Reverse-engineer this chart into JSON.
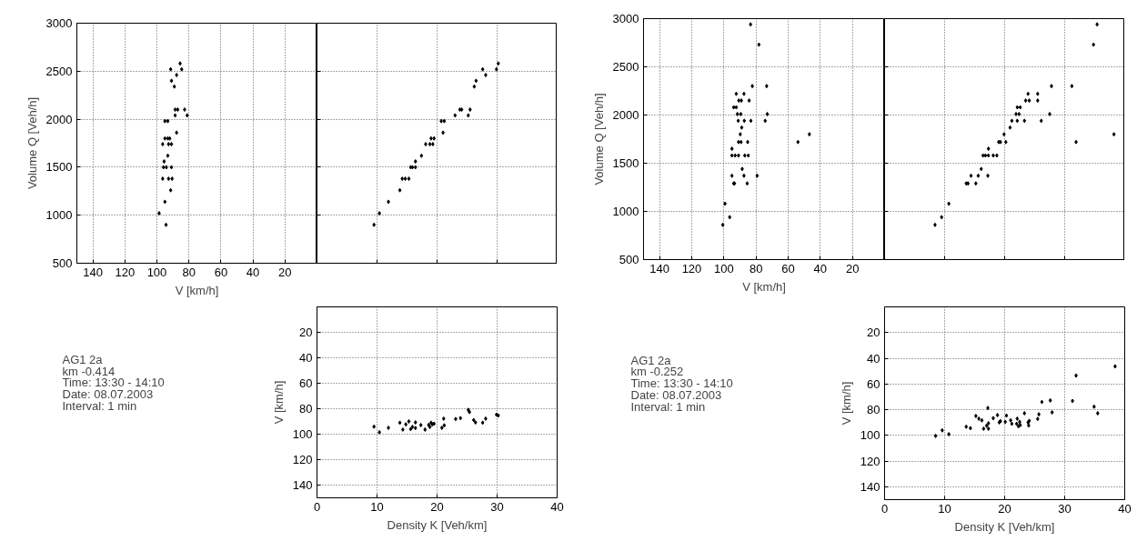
{
  "chart_data": [
    {
      "type": "scatter",
      "xlabel": "V [km/h]",
      "ylabel": "Volume Q [Veh/h]",
      "xlim": [
        150,
        0
      ],
      "xticks": [
        140,
        120,
        100,
        80,
        60,
        40,
        20
      ],
      "ylim": [
        500,
        3000
      ],
      "yticks": [
        500,
        1000,
        1500,
        2000,
        2500,
        3000
      ],
      "grid": true,
      "marker": "diamond",
      "color": "#000000",
      "x": [
        98.6,
        94.3,
        95.0,
        91.4,
        96.4,
        92.7,
        90.5,
        95.9,
        94.1,
        90.9,
        95.5,
        93.2,
        96.4,
        92.7,
        90.9,
        95.0,
        93.2,
        92.0,
        95.0,
        93.2,
        87.7,
        88.6,
        88.6,
        87.0,
        82.7,
        81.1,
        89.1,
        90.9,
        87.7,
        91.4,
        84.5,
        85.5
      ],
      "values": [
        1020,
        900,
        1140,
        1260,
        1380,
        1380,
        1380,
        1500,
        1500,
        1500,
        1560,
        1620,
        1740,
        1740,
        1740,
        1800,
        1800,
        1800,
        1980,
        1980,
        1860,
        2040,
        2100,
        2100,
        2100,
        2040,
        2340,
        2400,
        2460,
        2520,
        2520,
        2580
      ]
    },
    {
      "type": "scatter",
      "xlim": [
        0,
        40
      ],
      "xticks": [
        0,
        10,
        20,
        30,
        40
      ],
      "ylim": [
        500,
        3000
      ],
      "yticks": [
        500,
        1000,
        1500,
        2000,
        2500,
        3000
      ],
      "grid": true,
      "marker": "diamond",
      "color": "#000000",
      "tick_labels": false,
      "x": [
        9.5,
        10.4,
        11.9,
        13.8,
        14.2,
        14.7,
        15.3,
        15.6,
        15.9,
        16.4,
        16.4,
        17.4,
        18.1,
        18.8,
        19.3,
        19.0,
        19.5,
        20.7,
        21.2,
        21.0,
        23.0,
        23.8,
        24.1,
        25.2,
        25.5,
        26.2,
        26.5,
        27.6,
        28.1,
        29.9,
        30.2
      ],
      "values": [
        900,
        1020,
        1140,
        1260,
        1380,
        1380,
        1380,
        1500,
        1500,
        1500,
        1560,
        1620,
        1740,
        1740,
        1740,
        1800,
        1800,
        1980,
        1980,
        1860,
        2040,
        2100,
        2100,
        2040,
        2100,
        2340,
        2400,
        2520,
        2460,
        2520,
        2580
      ]
    },
    {
      "type": "other",
      "annotations": [
        "AG1 2a",
        "km -0.414",
        "Time: 13:30 - 14:10",
        "Date: 08.07.2003",
        "Interval: 1 min"
      ]
    },
    {
      "type": "scatter",
      "xlabel": "Density K [Veh/km]",
      "ylabel": "V [km/h]",
      "xlim": [
        0,
        40
      ],
      "xticks": [
        0,
        10,
        20,
        30,
        40
      ],
      "ylim": [
        150,
        0
      ],
      "yticks": [
        20,
        40,
        60,
        80,
        100,
        120,
        140
      ],
      "grid": true,
      "marker": "diamond",
      "color": "#000000",
      "x": [
        9.5,
        10.4,
        11.9,
        13.8,
        14.3,
        14.8,
        15.3,
        15.6,
        15.9,
        16.4,
        16.4,
        17.3,
        18.0,
        18.6,
        18.8,
        19.0,
        19.2,
        19.5,
        20.8,
        21.1,
        21.2,
        23.1,
        23.9,
        25.2,
        25.4,
        26.1,
        26.4,
        27.6,
        28.1,
        29.9,
        30.2
      ],
      "values": [
        94.1,
        98.5,
        95.0,
        91.0,
        96.4,
        92.3,
        90.0,
        96.0,
        94.3,
        95.2,
        90.8,
        92.9,
        96.4,
        92.7,
        94.3,
        91.0,
        92.3,
        91.8,
        95.0,
        87.8,
        93.1,
        88.1,
        87.4,
        80.9,
        82.6,
        88.9,
        90.8,
        91.0,
        87.8,
        84.7,
        85.3
      ]
    },
    {
      "type": "scatter",
      "xlabel": "V [km/h]",
      "ylabel": "Volume Q [Veh/h]",
      "xlim": [
        150,
        0
      ],
      "xticks": [
        140,
        120,
        100,
        80,
        60,
        40,
        20
      ],
      "ylim": [
        500,
        3000
      ],
      "yticks": [
        500,
        1000,
        1500,
        2000,
        2500,
        3000
      ],
      "grid": true,
      "marker": "diamond",
      "color": "#000000",
      "x": [
        100.7,
        96.4,
        99.3,
        95.0,
        93.9,
        95.0,
        95.0,
        93.0,
        90.9,
        93.4,
        88.6,
        87.5,
        85.5,
        87.0,
        84.8,
        90.9,
        89.3,
        85.2,
        89.8,
        88.9,
        91.1,
        87.3,
        83.2,
        91.6,
        89.5,
        93.9,
        92.3,
        90.7,
        89.1,
        92.3,
        87.5,
        84.3,
        82.3,
        83.4,
        78.2,
        79.3,
        73.4,
        74.3,
        73.0,
        53.9,
        46.8
      ],
      "values": [
        860,
        940,
        1080,
        1370,
        1290,
        1650,
        1580,
        1580,
        1580,
        1290,
        1440,
        1370,
        1290,
        1580,
        1580,
        1720,
        1720,
        1720,
        1800,
        1870,
        1940,
        1940,
        1940,
        2010,
        2010,
        2080,
        2080,
        2150,
        2150,
        2220,
        2220,
        2150,
        2300,
        2940,
        2730,
        1370,
        2300,
        1940,
        2010,
        1720,
        1800
      ]
    },
    {
      "type": "scatter",
      "xlim": [
        0,
        40
      ],
      "xticks": [
        0,
        10,
        20,
        30,
        40
      ],
      "ylim": [
        500,
        3000
      ],
      "yticks": [
        500,
        1000,
        1500,
        2000,
        2500,
        3000
      ],
      "grid": true,
      "marker": "diamond",
      "color": "#000000",
      "tick_labels": false,
      "x": [
        8.4,
        9.5,
        10.7,
        13.6,
        13.9,
        14.4,
        15.2,
        15.6,
        16.1,
        16.4,
        16.8,
        17.3,
        17.3,
        17.2,
        18.1,
        18.7,
        19.0,
        19.3,
        20.2,
        19.9,
        20.9,
        21.2,
        22.1,
        23.3,
        21.9,
        22.4,
        22.1,
        22.6,
        23.5,
        24.1,
        23.9,
        25.5,
        25.5,
        26.1,
        27.5,
        27.8,
        31.2,
        31.9,
        34.8,
        35.4,
        38.2
      ],
      "values": [
        860,
        940,
        1080,
        1290,
        1290,
        1370,
        1290,
        1370,
        1440,
        1580,
        1580,
        1580,
        1650,
        1370,
        1580,
        1580,
        1720,
        1720,
        1720,
        1800,
        1870,
        1940,
        1940,
        1940,
        2010,
        2010,
        2080,
        2080,
        2150,
        2150,
        2220,
        2220,
        2150,
        1940,
        2010,
        2300,
        2300,
        1720,
        2730,
        2940,
        1800
      ]
    },
    {
      "type": "other",
      "annotations": [
        "AG1 2a",
        "km -0.252",
        "Time: 13:30 - 14:10",
        "Date: 08.07.2003",
        "Interval: 1 min"
      ]
    },
    {
      "type": "scatter",
      "xlabel": "Density K [Veh/km]",
      "ylabel": "V [km/h]",
      "xlim": [
        0,
        40
      ],
      "xticks": [
        0,
        10,
        20,
        30,
        40
      ],
      "ylim": [
        150,
        0
      ],
      "yticks": [
        20,
        40,
        60,
        80,
        100,
        120,
        140
      ],
      "grid": true,
      "marker": "diamond",
      "color": "#000000",
      "x": [
        8.5,
        9.6,
        10.7,
        13.6,
        14.3,
        15.2,
        15.7,
        16.2,
        16.5,
        17.0,
        17.2,
        17.3,
        17.3,
        18.1,
        18.8,
        19.1,
        19.3,
        20.1,
        20.3,
        21.0,
        21.2,
        22.0,
        22.1,
        22.3,
        22.5,
        22.6,
        23.3,
        23.9,
        24.0,
        24.1,
        25.5,
        25.7,
        26.2,
        27.6,
        27.9,
        31.3,
        31.9,
        34.9,
        35.5,
        38.4
      ],
      "values": [
        100.4,
        96.1,
        99.1,
        93.3,
        94.4,
        84.9,
        87.0,
        88.3,
        94.8,
        92.5,
        78.7,
        90.6,
        94.8,
        86.6,
        84.2,
        89.9,
        88.9,
        89.5,
        84.6,
        88.3,
        91.0,
        91.0,
        87.0,
        92.9,
        89.5,
        91.9,
        82.8,
        90.0,
        92.3,
        88.7,
        87.2,
        83.6,
        74.0,
        72.8,
        82.1,
        73.2,
        53.5,
        77.7,
        82.8,
        46.3
      ]
    }
  ]
}
